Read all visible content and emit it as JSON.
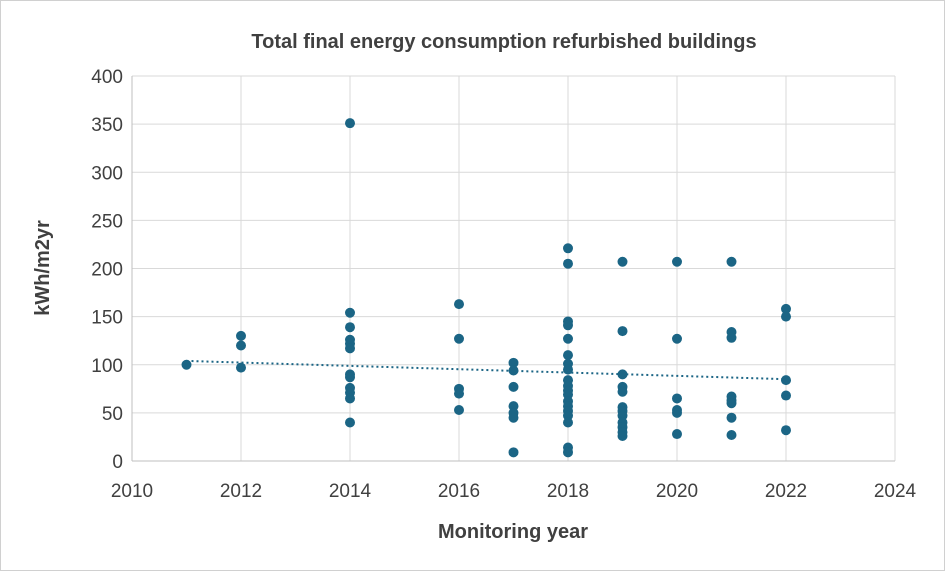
{
  "chart_data": {
    "type": "scatter",
    "title": "Total final energy consumption  refurbished buildings",
    "xlabel": "Monitoring year",
    "ylabel": "kWh/m2yr",
    "xlim": [
      2010,
      2024
    ],
    "ylim": [
      0,
      400
    ],
    "x_ticks": [
      2010,
      2012,
      2014,
      2016,
      2018,
      2020,
      2022,
      2024
    ],
    "y_ticks": [
      0,
      50,
      100,
      150,
      200,
      250,
      300,
      350,
      400
    ],
    "grid": "vertical-and-horizontal",
    "marker_color": "#1b6585",
    "trendline": {
      "style": "dotted",
      "color": "#1b6585",
      "start": [
        2011,
        104
      ],
      "end": [
        2022,
        85
      ]
    },
    "series": [
      {
        "name": "Refurbished buildings",
        "points": [
          [
            2011,
            100
          ],
          [
            2012,
            130
          ],
          [
            2012,
            120
          ],
          [
            2012,
            97
          ],
          [
            2014,
            351
          ],
          [
            2014,
            154
          ],
          [
            2014,
            139
          ],
          [
            2014,
            126
          ],
          [
            2014,
            122
          ],
          [
            2014,
            117
          ],
          [
            2014,
            90
          ],
          [
            2014,
            87
          ],
          [
            2014,
            76
          ],
          [
            2014,
            71
          ],
          [
            2014,
            65
          ],
          [
            2014,
            40
          ],
          [
            2016,
            163
          ],
          [
            2016,
            127
          ],
          [
            2016,
            75
          ],
          [
            2016,
            70
          ],
          [
            2016,
            53
          ],
          [
            2017,
            102
          ],
          [
            2017,
            94
          ],
          [
            2017,
            77
          ],
          [
            2017,
            57
          ],
          [
            2017,
            50
          ],
          [
            2017,
            45
          ],
          [
            2017,
            9
          ],
          [
            2018,
            221
          ],
          [
            2018,
            205
          ],
          [
            2018,
            145
          ],
          [
            2018,
            141
          ],
          [
            2018,
            127
          ],
          [
            2018,
            110
          ],
          [
            2018,
            101
          ],
          [
            2018,
            95
          ],
          [
            2018,
            84
          ],
          [
            2018,
            78
          ],
          [
            2018,
            73
          ],
          [
            2018,
            69
          ],
          [
            2018,
            62
          ],
          [
            2018,
            57
          ],
          [
            2018,
            52
          ],
          [
            2018,
            47
          ],
          [
            2018,
            40
          ],
          [
            2018,
            14
          ],
          [
            2018,
            9
          ],
          [
            2019,
            207
          ],
          [
            2019,
            135
          ],
          [
            2019,
            90
          ],
          [
            2019,
            77
          ],
          [
            2019,
            72
          ],
          [
            2019,
            56
          ],
          [
            2019,
            52
          ],
          [
            2019,
            47
          ],
          [
            2019,
            40
          ],
          [
            2019,
            35
          ],
          [
            2019,
            30
          ],
          [
            2019,
            26
          ],
          [
            2020,
            207
          ],
          [
            2020,
            127
          ],
          [
            2020,
            65
          ],
          [
            2020,
            53
          ],
          [
            2020,
            50
          ],
          [
            2020,
            28
          ],
          [
            2021,
            207
          ],
          [
            2021,
            134
          ],
          [
            2021,
            128
          ],
          [
            2021,
            67
          ],
          [
            2021,
            63
          ],
          [
            2021,
            60
          ],
          [
            2021,
            45
          ],
          [
            2021,
            27
          ],
          [
            2022,
            158
          ],
          [
            2022,
            150
          ],
          [
            2022,
            84
          ],
          [
            2022,
            68
          ],
          [
            2022,
            32
          ]
        ]
      }
    ]
  }
}
